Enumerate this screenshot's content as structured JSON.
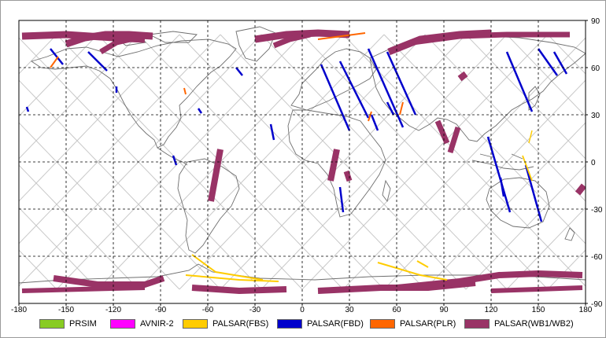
{
  "map": {
    "x_ticks": [
      "-180",
      "-150",
      "-120",
      "-90",
      "-60",
      "-30",
      "0",
      "30",
      "60",
      "90",
      "120",
      "150",
      "180"
    ],
    "y_ticks_right": [
      "90",
      "60",
      "30",
      "0",
      "-30",
      "-60",
      "-90"
    ]
  },
  "legend": [
    {
      "label": "PRSIM",
      "color": "#88cc22"
    },
    {
      "label": "AVNIR-2",
      "color": "#ff00ff"
    },
    {
      "label": "PALSAR(FBS)",
      "color": "#ffcc00"
    },
    {
      "label": "PALSAR(FBD)",
      "color": "#0000cc"
    },
    {
      "label": "PALSAR(PLR)",
      "color": "#ff6600"
    },
    {
      "label": "PALSAR(WB1/WB2)",
      "color": "#993366"
    }
  ]
}
